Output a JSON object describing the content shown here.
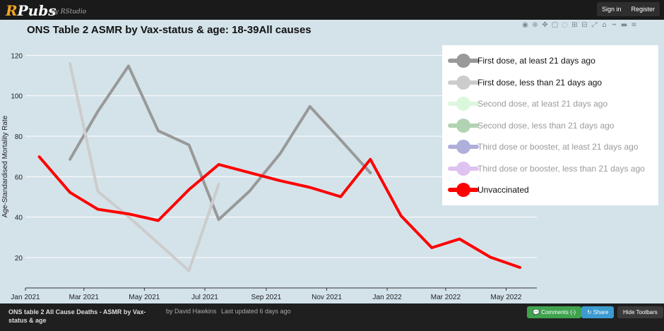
{
  "app": {
    "logo_r": "R",
    "logo_rest": "Pubs",
    "by": "by RStudio"
  },
  "top_nav": {
    "signin": "Sign in",
    "register": "Register"
  },
  "modebar_icons": [
    "camera-icon",
    "zoom-icon",
    "pan-icon",
    "box-select-icon",
    "lasso-icon",
    "zoom-in-icon",
    "zoom-out-icon",
    "autoscale-icon",
    "home-icon",
    "spike-icon",
    "hover-closest-icon",
    "hover-compare-icon"
  ],
  "chart_data": {
    "type": "line",
    "title": "ONS Table 2 ASMR by Vax-status & age: 18-39All causes",
    "xlabel": "",
    "ylabel": "Age-Standardised Mortality Rate",
    "ylim": [
      5,
      125
    ],
    "yticks": [
      20,
      40,
      60,
      80,
      100,
      120
    ],
    "xticks": [
      "Jan 2021",
      "Mar 2021",
      "May 2021",
      "Jul 2021",
      "Sep 2021",
      "Nov 2021",
      "Jan 2022",
      "Mar 2022",
      "May 2022"
    ],
    "grid": true,
    "legend_position": "right",
    "series": [
      {
        "name": "First dose, at least 21 days ago",
        "color": "#999999",
        "visible": true,
        "x": [
          "2021-02-15",
          "2021-03-15",
          "2021-04-15",
          "2021-05-15",
          "2021-06-15",
          "2021-07-15",
          "2021-08-15",
          "2021-09-15",
          "2021-10-15",
          "2021-11-15",
          "2021-12-15"
        ],
        "y": [
          68.6,
          92.2,
          114.7,
          82.7,
          75.7,
          38.8,
          52.8,
          71.4,
          94.7,
          78.2,
          61.9
        ]
      },
      {
        "name": "First dose, less than 21 days ago",
        "color": "#cccccc",
        "visible": true,
        "x": [
          "2021-02-15",
          "2021-03-15",
          "2021-04-15",
          "2021-05-15",
          "2021-06-15",
          "2021-07-15"
        ],
        "y": [
          115.9,
          52.8,
          40.2,
          27.1,
          13.5,
          56.2
        ]
      },
      {
        "name": "Second dose, at least 21 days ago",
        "color": "#c6f5c6",
        "visible": false,
        "x": [],
        "y": []
      },
      {
        "name": "Second dose, less than 21 days ago",
        "color": "#7fb77f",
        "visible": false,
        "x": [],
        "y": []
      },
      {
        "name": "Third dose or booster, at least 21 days ago",
        "color": "#7b7bc4",
        "visible": false,
        "x": [],
        "y": []
      },
      {
        "name": "Third dose or booster, less than 21 days ago",
        "color": "#c99be6",
        "visible": false,
        "x": [],
        "y": []
      },
      {
        "name": "Unvaccinated",
        "color": "#ff0000",
        "visible": true,
        "x": [
          "2021-01-15",
          "2021-02-15",
          "2021-03-15",
          "2021-04-15",
          "2021-05-15",
          "2021-06-15",
          "2021-07-15",
          "2021-08-15",
          "2021-09-15",
          "2021-10-15",
          "2021-11-15",
          "2021-12-15",
          "2022-01-15",
          "2022-02-15",
          "2022-03-15",
          "2022-04-15",
          "2022-05-15"
        ],
        "y": [
          69.8,
          52.2,
          43.9,
          41.6,
          38.3,
          53.6,
          66.0,
          62.0,
          58.0,
          54.7,
          50.1,
          68.6,
          40.6,
          24.9,
          29.2,
          20.2,
          15.1
        ]
      }
    ]
  },
  "footer": {
    "title": "ONS table 2 All Cause Deaths - ASMR by Vax-status & age",
    "author": "by David Hawkins",
    "updated": "Last updated 6 days ago",
    "comments_label": "💬 Comments (-)",
    "share_label": "↻ Share",
    "hide_label": "Hide Toolbars"
  }
}
